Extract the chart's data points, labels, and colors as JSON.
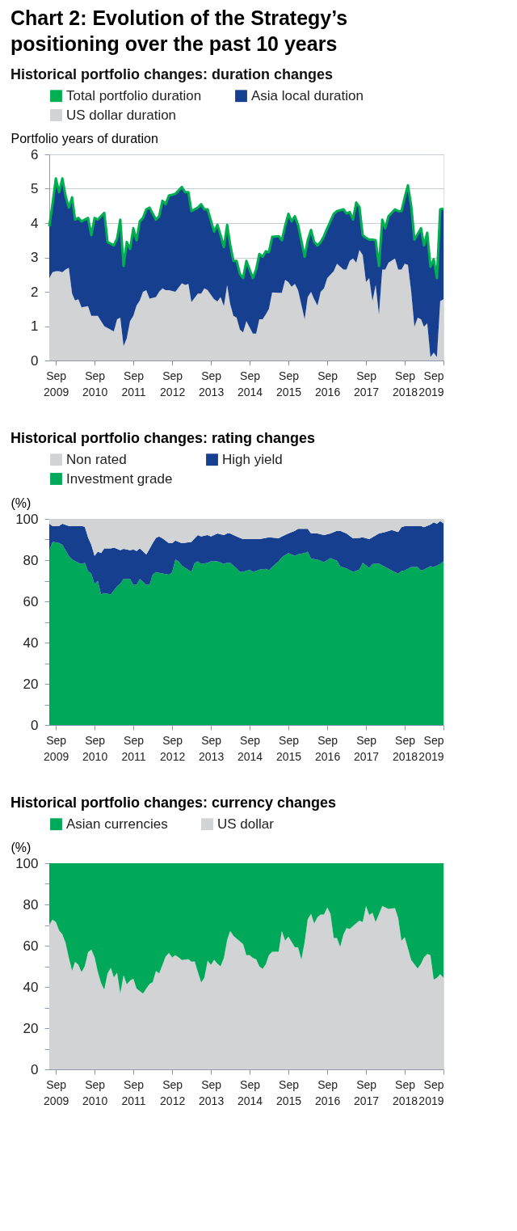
{
  "chart_data": [
    {
      "type": "area",
      "title": "Chart 2: Evolution of the Strategy’s positioning over the past 10 years",
      "subtitle": "Historical portfolio changes: duration changes",
      "ylabel": "Portfolio years of duration",
      "stacked": true,
      "legend": "top",
      "grid": "y",
      "xlim": [
        "2009-07",
        "2019-09"
      ],
      "xticks": [
        {
          "value": "2009-09",
          "label": "Sep\n2009"
        },
        {
          "value": "2010-09",
          "label": "Sep\n2010"
        },
        {
          "value": "2011-09",
          "label": "Sep\n2011"
        },
        {
          "value": "2012-09",
          "label": "Sep\n2012"
        },
        {
          "value": "2013-09",
          "label": "Sep\n2013"
        },
        {
          "value": "2014-09",
          "label": "Sep\n2014"
        },
        {
          "value": "2015-09",
          "label": "Sep\n2015"
        },
        {
          "value": "2016-09",
          "label": "Sep\n2016"
        },
        {
          "value": "2017-09",
          "label": "Sep\n2017"
        },
        {
          "value": "2018-09",
          "label": "Sep\n2018"
        },
        {
          "value": "2019-09",
          "label": "Sep\n2019"
        }
      ],
      "ylim": [
        0,
        6
      ],
      "yticks": [
        0,
        1,
        2,
        3,
        4,
        5,
        6
      ],
      "x": [
        "2009-07",
        "2009-08",
        "2009-09",
        "2009-10",
        "2009-11",
        "2009-12",
        "2010-01",
        "2010-02",
        "2010-03",
        "2010-04",
        "2010-05",
        "2010-07",
        "2010-08",
        "2010-09",
        "2010-10",
        "2010-12",
        "2011-01",
        "2011-03",
        "2011-04",
        "2011-05",
        "2011-06",
        "2011-07",
        "2011-08",
        "2011-09",
        "2011-10",
        "2011-11",
        "2011-12",
        "2012-01",
        "2012-02",
        "2012-04",
        "2012-05",
        "2012-06",
        "2012-07",
        "2012-08",
        "2012-10",
        "2012-12",
        "2013-01",
        "2013-02",
        "2013-03",
        "2013-05",
        "2013-06",
        "2013-07",
        "2013-08",
        "2013-10",
        "2013-11",
        "2013-12",
        "2014-01",
        "2014-02",
        "2014-03",
        "2014-04",
        "2014-05",
        "2014-06",
        "2014-07",
        "2014-08",
        "2014-10",
        "2014-11",
        "2014-12",
        "2015-01",
        "2015-02",
        "2015-03",
        "2015-04",
        "2015-06",
        "2015-07",
        "2015-08",
        "2015-09",
        "2015-10",
        "2015-11",
        "2015-12",
        "2016-02",
        "2016-03",
        "2016-04",
        "2016-05",
        "2016-06",
        "2016-07",
        "2016-08",
        "2016-09",
        "2016-11",
        "2016-12",
        "2017-02",
        "2017-03",
        "2017-04",
        "2017-05",
        "2017-06",
        "2017-07",
        "2017-08",
        "2017-09",
        "2017-10",
        "2017-11",
        "2017-12",
        "2018-01",
        "2018-02",
        "2018-03",
        "2018-04",
        "2018-06",
        "2018-07",
        "2018-08",
        "2018-09",
        "2018-10",
        "2018-11",
        "2018-12",
        "2019-01",
        "2019-02",
        "2019-03",
        "2019-04",
        "2019-05",
        "2019-06",
        "2019-07",
        "2019-08",
        "2019-09"
      ],
      "series": [
        {
          "name": "US dollar duration",
          "color": "#d1d3d4",
          "values": [
            2.4,
            2.57,
            2.6,
            2.6,
            2.57,
            2.65,
            2.7,
            1.95,
            1.75,
            1.78,
            1.55,
            1.58,
            1.3,
            1.3,
            1.3,
            1.0,
            0.95,
            0.85,
            1.2,
            1.25,
            0.42,
            0.65,
            1.15,
            1.3,
            1.6,
            1.75,
            2.0,
            2.05,
            1.8,
            1.85,
            2.0,
            2.1,
            2.05,
            2.05,
            2.0,
            2.25,
            2.2,
            2.23,
            1.7,
            1.95,
            1.95,
            2.1,
            2.05,
            1.78,
            1.72,
            1.85,
            1.58,
            2.2,
            1.65,
            1.3,
            1.25,
            0.9,
            0.82,
            1.15,
            0.78,
            0.78,
            1.2,
            1.2,
            1.35,
            1.5,
            1.98,
            1.97,
            1.97,
            2.35,
            2.28,
            2.15,
            2.23,
            2.05,
            1.2,
            1.85,
            2.0,
            1.78,
            1.6,
            2.0,
            2.1,
            2.4,
            2.6,
            2.82,
            2.65,
            2.65,
            2.9,
            2.97,
            2.85,
            3.22,
            3.07,
            2.28,
            2.4,
            1.73,
            2.2,
            1.33,
            2.65,
            2.65,
            2.85,
            2.97,
            2.65,
            2.65,
            2.82,
            2.78,
            2.0,
            0.98,
            1.25,
            1.2,
            0.98,
            1.08,
            0.1,
            0.23,
            0.1,
            1.73,
            1.78
          ]
        },
        {
          "name": "Asia local duration",
          "color": "#173f8f",
          "values": [
            1.5,
            2.0,
            2.7,
            2.3,
            2.73,
            2.15,
            1.75,
            2.8,
            2.35,
            2.37,
            2.5,
            2.57,
            2.35,
            2.85,
            2.8,
            3.3,
            2.5,
            2.5,
            2.35,
            2.85,
            2.33,
            2.8,
            2.1,
            2.55,
            1.9,
            2.3,
            2.15,
            2.35,
            2.65,
            2.25,
            2.2,
            2.55,
            2.5,
            2.75,
            2.85,
            2.8,
            2.7,
            2.67,
            2.65,
            2.5,
            2.6,
            2.3,
            2.35,
            1.97,
            2.23,
            1.8,
            1.72,
            1.75,
            1.73,
            1.6,
            1.65,
            1.62,
            1.58,
            1.75,
            1.62,
            1.87,
            1.9,
            1.82,
            1.83,
            1.65,
            1.62,
            1.65,
            1.53,
            1.57,
            1.99,
            1.9,
            1.97,
            1.9,
            1.82,
            1.65,
            1.8,
            1.67,
            1.75,
            1.45,
            1.52,
            1.45,
            1.67,
            1.53,
            1.75,
            1.63,
            1.42,
            1.13,
            1.75,
            1.25,
            0.58,
            1.29,
            1.12,
            1.79,
            1.3,
            1.42,
            1.45,
            1.2,
            1.35,
            1.43,
            1.7,
            1.7,
            1.93,
            2.32,
            2.5,
            2.54,
            2.43,
            2.65,
            2.37,
            2.64,
            2.63,
            2.72,
            2.3,
            2.67,
            2.64
          ]
        },
        {
          "name": "Total portfolio duration",
          "color": "#00b050",
          "type": "line",
          "values": [
            3.9,
            4.57,
            5.3,
            4.9,
            5.3,
            4.8,
            4.45,
            4.75,
            4.1,
            4.15,
            4.05,
            4.15,
            3.65,
            4.15,
            4.1,
            4.3,
            3.45,
            3.35,
            3.55,
            4.1,
            2.75,
            3.45,
            3.25,
            3.85,
            3.5,
            4.05,
            4.15,
            4.4,
            4.45,
            4.1,
            4.2,
            4.65,
            4.55,
            4.8,
            4.85,
            5.05,
            4.9,
            4.9,
            4.35,
            4.45,
            4.55,
            4.4,
            4.4,
            3.75,
            3.95,
            3.65,
            3.3,
            3.95,
            3.38,
            2.9,
            2.9,
            2.52,
            2.4,
            2.9,
            2.4,
            2.65,
            3.1,
            3.02,
            3.18,
            3.15,
            3.6,
            3.62,
            3.5,
            3.92,
            4.27,
            4.05,
            4.2,
            3.95,
            3.02,
            3.5,
            3.8,
            3.45,
            3.35,
            3.45,
            3.62,
            3.85,
            4.27,
            4.35,
            4.4,
            4.28,
            4.32,
            4.1,
            4.6,
            4.47,
            3.65,
            3.57,
            3.52,
            3.52,
            3.5,
            2.75,
            4.1,
            3.85,
            4.2,
            4.4,
            4.35,
            4.35,
            4.75,
            5.1,
            4.5,
            3.52,
            3.68,
            3.85,
            3.35,
            3.72,
            2.73,
            2.95,
            2.4,
            4.4,
            4.42
          ]
        }
      ]
    },
    {
      "type": "area",
      "title": "Historical portfolio changes: rating changes",
      "ylabel": "(%)",
      "stacked": true,
      "legend": "top",
      "xlim": [
        "2009-07",
        "2019-09"
      ],
      "xticks": [
        {
          "value": "2009-09",
          "label": "Sep\n2009"
        },
        {
          "value": "2010-09",
          "label": "Sep\n2010"
        },
        {
          "value": "2011-09",
          "label": "Sep\n2011"
        },
        {
          "value": "2012-09",
          "label": "Sep\n2012"
        },
        {
          "value": "2013-09",
          "label": "Sep\n2013"
        },
        {
          "value": "2014-09",
          "label": "Sep\n2014"
        },
        {
          "value": "2015-09",
          "label": "Sep\n2015"
        },
        {
          "value": "2016-09",
          "label": "Sep\n2016"
        },
        {
          "value": "2017-09",
          "label": "Sep\n2017"
        },
        {
          "value": "2018-09",
          "label": "Sep\n2018"
        },
        {
          "value": "2019-09",
          "label": "Sep\n2019"
        }
      ],
      "ylim": [
        0,
        100
      ],
      "yticks": [
        0,
        {
          "value": 10,
          "label": null
        },
        20,
        {
          "value": 30,
          "label": null
        },
        40,
        {
          "value": 50,
          "label": null
        },
        60,
        {
          "value": 70,
          "label": null
        },
        80,
        {
          "value": 90,
          "label": null
        },
        100
      ],
      "x": [
        "2009-07",
        "2009-08",
        "2009-09",
        "2009-10",
        "2009-11",
        "2010-01",
        "2010-02",
        "2010-04",
        "2010-05",
        "2010-06",
        "2010-07",
        "2010-08",
        "2010-09",
        "2010-10",
        "2010-11",
        "2010-12",
        "2011-02",
        "2011-03",
        "2011-04",
        "2011-05",
        "2011-06",
        "2011-08",
        "2011-09",
        "2011-10",
        "2011-11",
        "2012-01",
        "2012-02",
        "2012-03",
        "2012-04",
        "2012-05",
        "2012-06",
        "2012-08",
        "2012-09",
        "2012-10",
        "2012-11",
        "2012-12",
        "2013-03",
        "2013-04",
        "2013-05",
        "2013-06",
        "2013-08",
        "2013-09",
        "2013-11",
        "2014-01",
        "2014-02",
        "2014-03",
        "2014-05",
        "2014-06",
        "2014-07",
        "2014-09",
        "2014-10",
        "2014-12",
        "2015-02",
        "2015-03",
        "2015-05",
        "2015-06",
        "2015-07",
        "2015-09",
        "2015-11",
        "2015-12",
        "2016-02",
        "2016-03",
        "2016-04",
        "2016-06",
        "2016-08",
        "2016-10",
        "2016-12",
        "2017-01",
        "2017-03",
        "2017-05",
        "2017-07",
        "2017-08",
        "2017-10",
        "2017-11",
        "2018-01",
        "2018-03",
        "2018-05",
        "2018-07",
        "2018-08",
        "2018-09",
        "2018-11",
        "2019-01",
        "2019-02",
        "2019-03",
        "2019-05",
        "2019-06",
        "2019-07",
        "2019-08",
        "2019-09"
      ],
      "series": [
        {
          "name": "Investment grade",
          "color": "#00a859",
          "values": [
            84.8,
            88.8,
            88.6,
            88.2,
            87.5,
            82.1,
            80.3,
            78.7,
            78.1,
            78.7,
            74.7,
            73.4,
            68.3,
            70.0,
            63.3,
            64.0,
            63.3,
            65.3,
            67.3,
            68.6,
            70.9,
            70.9,
            68.0,
            68.0,
            70.9,
            68.0,
            68.0,
            72.9,
            74.2,
            73.8,
            73.5,
            72.9,
            74.2,
            80.3,
            79.4,
            77.4,
            74.3,
            78.7,
            79.4,
            78.1,
            78.7,
            79.4,
            79.4,
            78.1,
            78.7,
            78.7,
            76.0,
            74.3,
            74.3,
            75.4,
            74.2,
            75.4,
            75.8,
            75.1,
            78.1,
            79.4,
            81.4,
            83.4,
            82.1,
            82.8,
            83.4,
            84.1,
            80.7,
            80.3,
            79.0,
            81.0,
            79.7,
            77.0,
            76.0,
            74.3,
            75.4,
            78.7,
            76.3,
            78.1,
            78.3,
            76.7,
            75.0,
            73.4,
            74.7,
            75.0,
            76.7,
            76.7,
            75.0,
            75.4,
            77.1,
            76.7,
            77.4,
            78.1,
            79.4
          ]
        },
        {
          "name": "High yield",
          "color": "#173f8f",
          "values": [
            12.8,
            7.7,
            8.0,
            8.4,
            10.1,
            14.5,
            16.3,
            17.9,
            18.5,
            17.5,
            16.4,
            14.1,
            13.8,
            14.1,
            20.1,
            21.7,
            22.4,
            20.8,
            18.2,
            16.2,
            14.6,
            13.9,
            17.2,
            16.4,
            14.8,
            14.7,
            17.5,
            15.3,
            16.6,
            17.7,
            17.1,
            15.3,
            14.0,
            9.2,
            9.4,
            10.8,
            14.5,
            11.9,
            12.8,
            13.4,
            13.5,
            12.1,
            13.5,
            14.1,
            14.2,
            14.2,
            15.5,
            16.5,
            15.9,
            14.8,
            16.0,
            14.8,
            15.0,
            16.0,
            12.7,
            11.2,
            10.1,
            9.5,
            12.1,
            12.4,
            11.8,
            11.1,
            12.2,
            12.6,
            13.2,
            11.9,
            14.5,
            17.2,
            16.9,
            16.3,
            15.4,
            12.4,
            13.9,
            13.0,
            14.6,
            16.9,
            19.6,
            20.2,
            21.3,
            21.5,
            19.9,
            19.9,
            21.6,
            20.6,
            20.2,
            21.6,
            20.2,
            20.8,
            18.4
          ]
        },
        {
          "name": "Non rated",
          "color": "#d1d3d4",
          "values": [
            2.4,
            3.5,
            3.4,
            3.4,
            2.4,
            3.4,
            3.4,
            3.4,
            3.4,
            3.8,
            8.9,
            12.5,
            17.9,
            15.9,
            16.6,
            14.3,
            14.3,
            13.9,
            14.5,
            15.2,
            14.5,
            15.2,
            14.8,
            15.6,
            14.3,
            17.3,
            14.5,
            11.8,
            9.2,
            8.5,
            9.4,
            11.8,
            11.8,
            10.5,
            11.2,
            11.8,
            11.2,
            9.4,
            7.8,
            8.5,
            7.8,
            8.5,
            7.1,
            7.8,
            7.1,
            7.1,
            8.5,
            9.2,
            9.8,
            9.8,
            9.8,
            9.8,
            9.2,
            8.9,
            9.2,
            9.4,
            8.5,
            7.1,
            5.8,
            4.8,
            4.8,
            4.8,
            7.1,
            7.1,
            7.8,
            7.1,
            5.8,
            5.8,
            7.1,
            9.4,
            9.2,
            8.9,
            9.8,
            8.9,
            7.1,
            6.4,
            5.4,
            6.4,
            4.0,
            3.5,
            3.4,
            3.4,
            3.4,
            4.0,
            2.7,
            1.7,
            2.4,
            1.1,
            2.2
          ]
        }
      ]
    },
    {
      "type": "area",
      "title": "Historical portfolio changes: currency changes",
      "ylabel": "(%)",
      "stacked": true,
      "legend": "top",
      "xlim": [
        "2009-07",
        "2019-09"
      ],
      "xticks": [
        {
          "value": "2009-09",
          "label": "Sep\n2009"
        },
        {
          "value": "2010-09",
          "label": "Sep\n2010"
        },
        {
          "value": "2011-09",
          "label": "Sep\n2011"
        },
        {
          "value": "2012-09",
          "label": "Sep\n2012"
        },
        {
          "value": "2013-09",
          "label": "Sep\n2013"
        },
        {
          "value": "2014-09",
          "label": "Sep\n2014"
        },
        {
          "value": "2015-09",
          "label": "Sep\n2015"
        },
        {
          "value": "2016-09",
          "label": "Sep\n2016"
        },
        {
          "value": "2017-09",
          "label": "Sep\n2017"
        },
        {
          "value": "2018-09",
          "label": "Sep\n2018"
        },
        {
          "value": "2019-09",
          "label": "Sep\n2019"
        }
      ],
      "ylim": [
        0,
        100
      ],
      "yticks": [
        0,
        {
          "value": 10,
          "label": null
        },
        20,
        {
          "value": 30,
          "label": null
        },
        40,
        {
          "value": 50,
          "label": null
        },
        60,
        {
          "value": 70,
          "label": null
        },
        80,
        {
          "value": 90,
          "label": null
        },
        100
      ],
      "x": [
        "2009-07",
        "2009-08",
        "2009-09",
        "2009-10",
        "2009-11",
        "2009-12",
        "2010-01",
        "2010-02",
        "2010-03",
        "2010-04",
        "2010-05",
        "2010-06",
        "2010-07",
        "2010-08",
        "2010-09",
        "2010-10",
        "2010-11",
        "2010-12",
        "2011-01",
        "2011-02",
        "2011-03",
        "2011-04",
        "2011-05",
        "2011-06",
        "2011-07",
        "2011-08",
        "2011-09",
        "2011-10",
        "2011-12",
        "2012-01",
        "2012-02",
        "2012-03",
        "2012-04",
        "2012-05",
        "2012-06",
        "2012-07",
        "2012-08",
        "2012-09",
        "2012-10",
        "2012-11",
        "2012-12",
        "2013-02",
        "2013-03",
        "2013-04",
        "2013-05",
        "2013-06",
        "2013-07",
        "2013-08",
        "2013-09",
        "2013-10",
        "2013-11",
        "2013-12",
        "2014-01",
        "2014-02",
        "2014-03",
        "2014-04",
        "2014-05",
        "2014-07",
        "2014-08",
        "2014-09",
        "2014-10",
        "2014-11",
        "2014-12",
        "2015-01",
        "2015-02",
        "2015-03",
        "2015-04",
        "2015-06",
        "2015-07",
        "2015-08",
        "2015-09",
        "2015-11",
        "2015-12",
        "2016-01",
        "2016-02",
        "2016-03",
        "2016-04",
        "2016-05",
        "2016-06",
        "2016-07",
        "2016-08",
        "2016-09",
        "2016-10",
        "2016-11",
        "2016-12",
        "2017-01",
        "2017-02",
        "2017-03",
        "2017-04",
        "2017-05",
        "2017-07",
        "2017-08",
        "2017-09",
        "2017-10",
        "2017-11",
        "2017-12",
        "2018-02",
        "2018-04",
        "2018-06",
        "2018-07",
        "2018-08",
        "2018-09",
        "2018-11",
        "2019-01",
        "2019-02",
        "2019-03",
        "2019-04",
        "2019-05",
        "2019-06",
        "2019-07",
        "2019-08",
        "2019-09"
      ],
      "series": [
        {
          "name": "US dollar",
          "color": "#d1d3d4",
          "values": [
            70.2,
            72.6,
            71.5,
            67.5,
            65.5,
            61.5,
            54.2,
            47.8,
            52.2,
            50.8,
            47.2,
            50.1,
            56.8,
            58.1,
            54.4,
            47.4,
            41.9,
            38.6,
            46.6,
            49.3,
            44.6,
            46.9,
            36.8,
            45.7,
            41.3,
            43.0,
            44.0,
            39.2,
            36.8,
            39.2,
            41.5,
            42.3,
            47.7,
            46.6,
            50.6,
            54.7,
            56.5,
            54.3,
            55.4,
            54.3,
            53.0,
            53.4,
            52.3,
            52.4,
            47.3,
            42.2,
            44.4,
            52.7,
            50.7,
            53.1,
            51.3,
            50.0,
            54.0,
            62.8,
            67.2,
            64.8,
            63.4,
            60.8,
            55.4,
            55.4,
            54.0,
            53.4,
            50.0,
            48.7,
            51.1,
            55.4,
            57.1,
            57.1,
            67.2,
            62.5,
            64.4,
            59.2,
            59.2,
            53.2,
            61.8,
            72.8,
            75.5,
            70.8,
            73.8,
            75.1,
            75.1,
            78.5,
            75.5,
            63.7,
            63.7,
            59.4,
            65.5,
            68.5,
            68.1,
            69.5,
            72.2,
            71.5,
            79.2,
            74.9,
            76.0,
            71.5,
            79.2,
            77.8,
            78.2,
            73.5,
            62.4,
            64.1,
            53.0,
            48.9,
            51.3,
            54.3,
            56.0,
            55.4,
            43.5,
            44.4,
            46.2,
            44.4
          ]
        },
        {
          "name": "Asian currencies",
          "color": "#00a859",
          "values": [
            29.8,
            27.4,
            28.5,
            32.5,
            34.5,
            38.5,
            45.8,
            52.2,
            47.8,
            49.2,
            52.8,
            49.9,
            43.2,
            41.9,
            45.6,
            52.6,
            58.1,
            61.4,
            53.4,
            50.7,
            55.4,
            53.1,
            63.2,
            54.3,
            58.7,
            57.0,
            56.0,
            60.8,
            63.2,
            60.8,
            58.5,
            57.7,
            52.3,
            53.4,
            49.4,
            45.3,
            43.5,
            45.7,
            44.6,
            45.7,
            47.0,
            46.6,
            47.7,
            47.6,
            52.7,
            57.8,
            55.6,
            47.3,
            49.3,
            46.9,
            48.7,
            50.0,
            46.0,
            37.2,
            32.8,
            35.2,
            36.6,
            39.2,
            44.6,
            44.6,
            46.0,
            46.6,
            50.0,
            51.3,
            48.9,
            44.6,
            42.9,
            42.9,
            32.8,
            37.5,
            35.6,
            40.8,
            40.8,
            46.8,
            38.2,
            27.2,
            24.5,
            29.2,
            26.2,
            24.9,
            24.9,
            21.5,
            24.5,
            36.3,
            36.3,
            40.6,
            34.5,
            31.5,
            31.9,
            30.5,
            27.8,
            28.5,
            20.8,
            25.1,
            24.0,
            28.5,
            20.8,
            22.2,
            21.8,
            26.5,
            37.6,
            35.9,
            47.0,
            51.1,
            48.7,
            45.7,
            44.0,
            44.6,
            56.5,
            55.6,
            53.8,
            55.6
          ]
        }
      ]
    }
  ]
}
